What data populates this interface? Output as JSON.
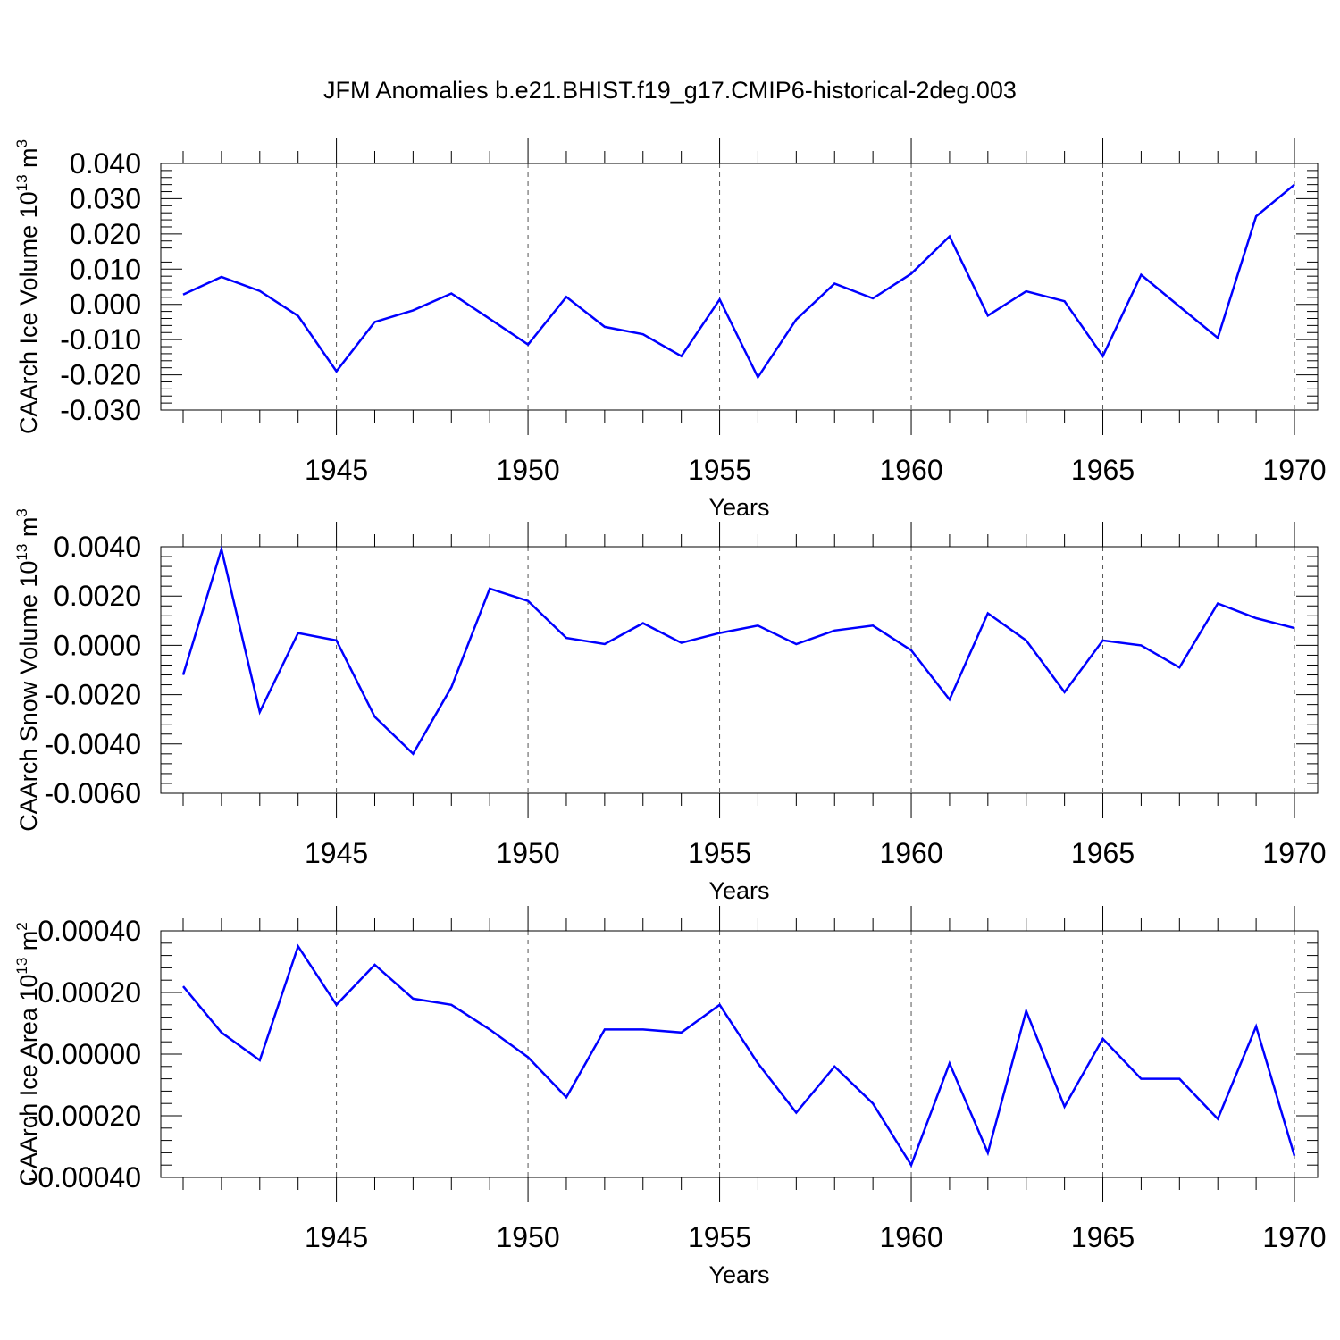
{
  "title": "JFM Anomalies b.e21.BHIST.f19_g17.CMIP6-historical-2deg.003",
  "colors": {
    "series": "#0000ff",
    "axis": "#000000",
    "grid": "#555555"
  },
  "chart_data": [
    {
      "type": "line",
      "ylabel": "CAArch Ice Volume 10",
      "ylabel_sup": "13",
      "ylabel_unit": "m",
      "ylabel_unit_sup": "3",
      "xlabel": "Years",
      "xlim": [
        1941,
        1970
      ],
      "ylim": [
        -0.03,
        0.04
      ],
      "yticks": [
        -0.03,
        -0.02,
        -0.01,
        0.0,
        0.01,
        0.02,
        0.03,
        0.04
      ],
      "ytick_labels": [
        "-0.030",
        "-0.020",
        "-0.010",
        "0.000",
        "0.010",
        "0.020",
        "0.030",
        "0.040"
      ],
      "xticks": [
        1945,
        1950,
        1955,
        1960,
        1965,
        1970
      ],
      "xtick_labels": [
        "1945",
        "1950",
        "1955",
        "1960",
        "1965",
        "1970"
      ],
      "grid": "vertical dashed at major x ticks",
      "x": [
        1941,
        1942,
        1943,
        1944,
        1945,
        1946,
        1947,
        1948,
        1949,
        1950,
        1951,
        1952,
        1953,
        1954,
        1955,
        1956,
        1957,
        1958,
        1959,
        1960,
        1961,
        1962,
        1963,
        1964,
        1965,
        1966,
        1967,
        1968,
        1969,
        1970
      ],
      "values": [
        0.0028,
        0.0078,
        0.0038,
        -0.0033,
        -0.019,
        -0.005,
        -0.0017,
        0.0031,
        -0.0041,
        -0.0114,
        0.0021,
        -0.0064,
        -0.0085,
        -0.0147,
        0.0014,
        -0.0207,
        -0.0043,
        0.0059,
        0.0017,
        0.0087,
        0.0193,
        -0.0032,
        0.0037,
        0.0009,
        -0.0147,
        0.0084,
        -0.0006,
        -0.0095,
        0.025,
        0.034
      ]
    },
    {
      "type": "line",
      "ylabel": "CAArch Snow Volume 10",
      "ylabel_sup": "13",
      "ylabel_unit": "m",
      "ylabel_unit_sup": "3",
      "xlabel": "Years",
      "xlim": [
        1941,
        1970
      ],
      "ylim": [
        -0.006,
        0.004
      ],
      "yticks": [
        -0.006,
        -0.004,
        -0.002,
        0.0,
        0.002,
        0.004
      ],
      "ytick_labels": [
        "-0.0060",
        "-0.0040",
        "-0.0020",
        "0.0000",
        "0.0020",
        "0.0040"
      ],
      "xticks": [
        1945,
        1950,
        1955,
        1960,
        1965,
        1970
      ],
      "xtick_labels": [
        "1945",
        "1950",
        "1955",
        "1960",
        "1965",
        "1970"
      ],
      "grid": "vertical dashed at major x ticks",
      "x": [
        1941,
        1942,
        1943,
        1944,
        1945,
        1946,
        1947,
        1948,
        1949,
        1950,
        1951,
        1952,
        1953,
        1954,
        1955,
        1956,
        1957,
        1958,
        1959,
        1960,
        1961,
        1962,
        1963,
        1964,
        1965,
        1966,
        1967,
        1968,
        1969,
        1970
      ],
      "values": [
        -0.0012,
        0.0039,
        -0.0027,
        0.0005,
        0.0002,
        -0.0029,
        -0.0044,
        -0.0017,
        0.0023,
        0.0018,
        0.0003,
        5e-05,
        0.0009,
        0.0001,
        0.0005,
        0.0008,
        5e-05,
        0.0006,
        0.0008,
        -0.0002,
        -0.0022,
        0.0013,
        0.0002,
        -0.0019,
        0.0002,
        0.0,
        -0.0009,
        0.0017,
        0.0011,
        0.0007
      ]
    },
    {
      "type": "line",
      "ylabel": "CAArch Ice Area 10",
      "ylabel_sup": "13",
      "ylabel_unit": "m",
      "ylabel_unit_sup": "2",
      "xlabel": "Years",
      "xlim": [
        1941,
        1970
      ],
      "ylim": [
        -0.0004,
        0.0004
      ],
      "yticks": [
        -0.0004,
        -0.0002,
        0.0,
        0.0002,
        0.0004
      ],
      "ytick_labels": [
        "-0.00040",
        "-0.00020",
        "0.00000",
        "0.00020",
        "0.00040"
      ],
      "xticks": [
        1945,
        1950,
        1955,
        1960,
        1965,
        1970
      ],
      "xtick_labels": [
        "1945",
        "1950",
        "1955",
        "1960",
        "1965",
        "1970"
      ],
      "grid": "vertical dashed at major x ticks",
      "x": [
        1941,
        1942,
        1943,
        1944,
        1945,
        1946,
        1947,
        1948,
        1949,
        1950,
        1951,
        1952,
        1953,
        1954,
        1955,
        1956,
        1957,
        1958,
        1959,
        1960,
        1961,
        1962,
        1963,
        1964,
        1965,
        1966,
        1967,
        1968,
        1969,
        1970
      ],
      "values": [
        0.00022,
        7e-05,
        -2e-05,
        0.00035,
        0.00016,
        0.00029,
        0.00018,
        0.00016,
        8e-05,
        -1e-05,
        -0.00014,
        8e-05,
        8e-05,
        7e-05,
        0.00016,
        -3e-05,
        -0.00019,
        -4e-05,
        -0.00016,
        -0.00036,
        -3e-05,
        -0.00032,
        0.00014,
        -0.00017,
        5e-05,
        -8e-05,
        -8e-05,
        -0.00021,
        9e-05,
        -0.00033
      ]
    }
  ]
}
